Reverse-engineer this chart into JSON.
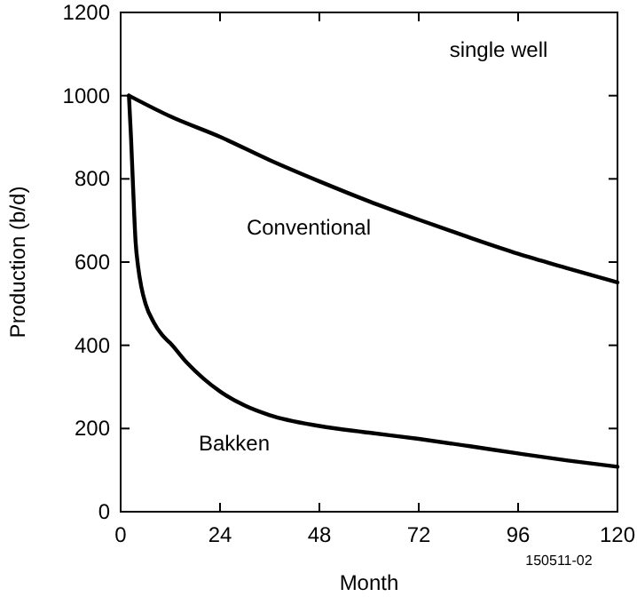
{
  "chart_data": {
    "type": "line",
    "xlabel": "Month",
    "ylabel": "Production (b/d)",
    "xlim": [
      0,
      120
    ],
    "xticks": [
      0,
      24,
      48,
      72,
      96,
      120
    ],
    "ylim": [
      0,
      1200
    ],
    "yticks": [
      0,
      200,
      400,
      600,
      800,
      1000,
      1200
    ],
    "grid": false,
    "marker": "none",
    "line_style": "solid",
    "annotations": [
      {
        "text": "single well"
      },
      {
        "text": "150511-02"
      }
    ],
    "series": [
      {
        "name": "Conventional",
        "color": "#000000",
        "x": [
          2,
          12,
          24,
          36,
          48,
          60,
          72,
          84,
          96,
          108,
          120
        ],
        "values": [
          1000,
          950,
          901,
          845,
          794,
          746,
          702,
          660,
          620,
          585,
          551
        ]
      },
      {
        "name": "Bakken",
        "color": "#000000",
        "x": [
          2,
          2.5,
          3,
          3.6,
          4.2,
          5,
          6,
          8,
          10,
          12,
          16,
          20,
          24,
          30,
          36,
          48,
          60,
          72,
          84,
          96,
          108,
          120
        ],
        "values": [
          1000,
          900,
          780,
          650,
          590,
          540,
          500,
          455,
          425,
          405,
          358,
          320,
          289,
          255,
          232,
          206,
          190,
          175,
          158,
          140,
          123,
          108
        ]
      }
    ]
  }
}
